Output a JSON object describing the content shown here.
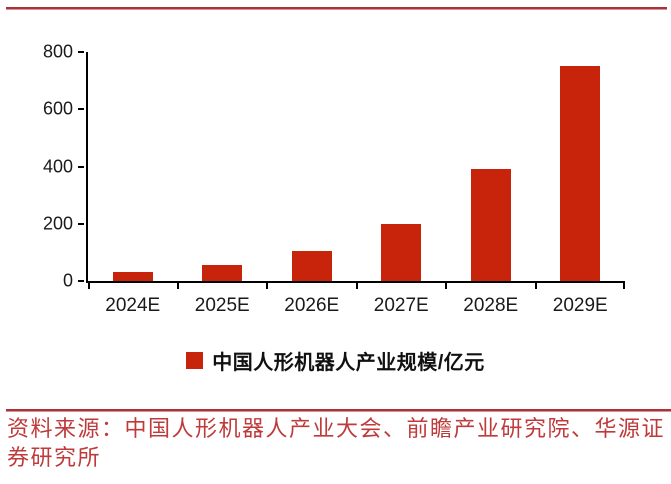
{
  "chart_data": {
    "type": "bar",
    "categories": [
      "2024E",
      "2025E",
      "2026E",
      "2027E",
      "2028E",
      "2029E"
    ],
    "values": [
      30,
      55,
      105,
      200,
      390,
      750
    ],
    "series": [
      {
        "name": "中国人形机器人产业规模/亿元",
        "values": [
          30,
          55,
          105,
          200,
          390,
          750
        ]
      }
    ],
    "title": "",
    "xlabel": "",
    "ylabel": "",
    "ylim": [
      0,
      800
    ],
    "yticks": [
      0,
      200,
      400,
      600,
      800
    ],
    "grid": false,
    "legend_position": "bottom-center",
    "bar_color": "#c8240b",
    "axis_color": "#000000"
  },
  "legend": {
    "label": "中国人形机器人产业规模/亿元",
    "swatch_color": "#c8240b"
  },
  "footer": {
    "source_note": "资料来源：中国人形机器人产业大会、前瞻产业研究院、华源证券研究所",
    "text_color": "#bf3b3b"
  },
  "decor": {
    "rule_color": "#a93336"
  }
}
